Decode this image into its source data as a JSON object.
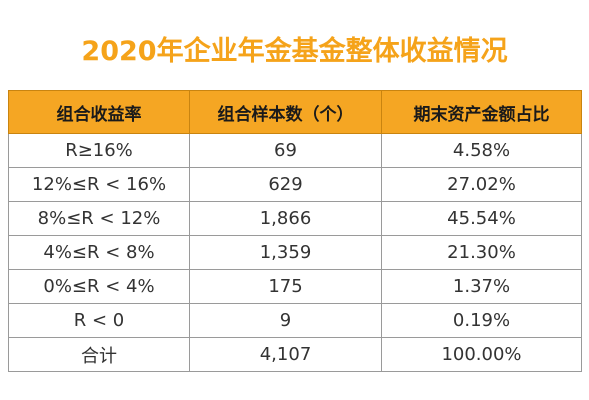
{
  "title": "2020年企业年金基金整体收益情况",
  "table": {
    "headers": [
      "组合收益率",
      "组合样本数（个）",
      "期末资产金额占比"
    ],
    "rows": [
      [
        "R≥16%",
        "69",
        "4.58%"
      ],
      [
        "12%≤R < 16%",
        "629",
        "27.02%"
      ],
      [
        "8%≤R < 12%",
        "1,866",
        "45.54%"
      ],
      [
        "4%≤R < 8%",
        "1,359",
        "21.30%"
      ],
      [
        "0%≤R < 4%",
        "175",
        "1.37%"
      ],
      [
        "R < 0",
        "9",
        "0.19%"
      ],
      [
        "合计",
        "4,107",
        "100.00%"
      ]
    ]
  },
  "colors": {
    "title": "#f5a31a",
    "header_bg": "#f5a623"
  }
}
